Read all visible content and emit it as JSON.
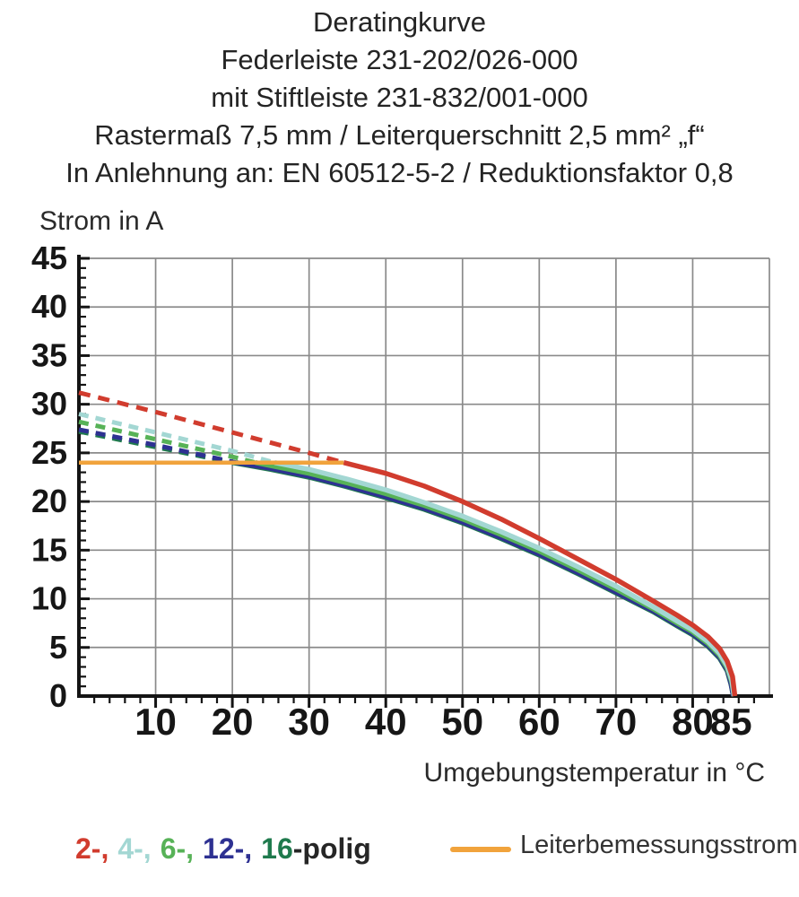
{
  "title": {
    "lines": [
      "Deratingkurve",
      "Federleiste 231-202/026-000",
      "mit Stiftleiste 231-832/001-000",
      "Rastermaß 7,5 mm / Leiterquerschnitt 2,5 mm² „f“",
      "In Anlehnung an: EN 60512-5-2 / Reduktionsfaktor 0,8"
    ]
  },
  "legend": {
    "pole_tokens": [
      {
        "text": "2-,",
        "color": "#d13c2e"
      },
      {
        "text": "4-,",
        "color": "#a3d7d3"
      },
      {
        "text": "6-,",
        "color": "#57b257"
      },
      {
        "text": "12-,",
        "color": "#2e3192"
      },
      {
        "text": "16",
        "color": "#1f7a4d"
      },
      {
        "text": "-polig",
        "color": "#262626"
      }
    ],
    "rated_label": "Leiterbemessungsstrom"
  },
  "chart_data": {
    "type": "line",
    "title": "Deratingkurve",
    "x_axis_title": "Umgebungstemperatur in °C",
    "y_axis_title": "Strom in A",
    "xlim": [
      0,
      90
    ],
    "ylim": [
      0,
      45
    ],
    "x_minor_step": 2,
    "y_minor_step": 1,
    "grid": {
      "x": [
        10,
        20,
        30,
        40,
        50,
        60,
        70,
        80,
        90
      ],
      "y": [
        5,
        10,
        15,
        20,
        25,
        30,
        35,
        40,
        45
      ]
    },
    "x_tick_labels": [
      {
        "v": 10,
        "label": "10"
      },
      {
        "v": 20,
        "label": "20"
      },
      {
        "v": 30,
        "label": "30"
      },
      {
        "v": 40,
        "label": "40"
      },
      {
        "v": 50,
        "label": "50"
      },
      {
        "v": 60,
        "label": "60"
      },
      {
        "v": 70,
        "label": "70"
      },
      {
        "v": 80,
        "label": "80"
      },
      {
        "v": 85,
        "label": "85"
      }
    ],
    "y_tick_labels": [
      {
        "v": 0,
        "label": "0"
      },
      {
        "v": 5,
        "label": "5"
      },
      {
        "v": 10,
        "label": "10"
      },
      {
        "v": 15,
        "label": "15"
      },
      {
        "v": 20,
        "label": "20"
      },
      {
        "v": 25,
        "label": "25"
      },
      {
        "v": 30,
        "label": "30"
      },
      {
        "v": 35,
        "label": "35"
      },
      {
        "v": 40,
        "label": "40"
      },
      {
        "v": 45,
        "label": "45"
      }
    ],
    "colors": {
      "grid": "#8a8a8a",
      "axis": "#141414",
      "red": "#d13c2e",
      "cyan": "#a3d7d3",
      "green": "#57b257",
      "navy": "#2e3192",
      "darkgreen": "#1f7a4d",
      "orange": "#f1a33c"
    },
    "rated_current": {
      "label": "Leiterbemessungsstrom",
      "value": 24,
      "x_range": [
        0,
        34.5
      ],
      "color": "#f1a33c"
    },
    "series": [
      {
        "name": "2-polig",
        "color": "#d13c2e",
        "dash": "13 9",
        "dashed": [
          [
            0,
            31.2
          ],
          [
            10,
            29.2
          ],
          [
            20,
            27.1
          ],
          [
            30,
            25.0
          ],
          [
            34.5,
            24
          ]
        ],
        "solid": [
          [
            34.5,
            24
          ],
          [
            40,
            22.9
          ],
          [
            45,
            21.6
          ],
          [
            50,
            20.0
          ],
          [
            55,
            18.2
          ],
          [
            60,
            16.2
          ],
          [
            65,
            14.1
          ],
          [
            70,
            12.0
          ],
          [
            75,
            9.7
          ],
          [
            78,
            8.3
          ],
          [
            80,
            7.3
          ],
          [
            82,
            6.1
          ],
          [
            83.5,
            4.9
          ],
          [
            84.5,
            3.6
          ],
          [
            85.2,
            2.0
          ],
          [
            85.5,
            0
          ]
        ]
      },
      {
        "name": "4-polig",
        "color": "#a3d7d3",
        "dash": "11 8",
        "dashed": [
          [
            0,
            29.0
          ],
          [
            10,
            27.1
          ],
          [
            20,
            25.2
          ],
          [
            25.5,
            24
          ]
        ],
        "solid": [
          [
            25.5,
            24
          ],
          [
            30,
            23.3
          ],
          [
            35,
            22.3
          ],
          [
            40,
            21.2
          ],
          [
            45,
            19.9
          ],
          [
            50,
            18.5
          ],
          [
            55,
            16.9
          ],
          [
            60,
            15.2
          ],
          [
            65,
            13.3
          ],
          [
            70,
            11.3
          ],
          [
            75,
            9.1
          ],
          [
            78,
            7.7
          ],
          [
            80,
            6.8
          ],
          [
            82,
            5.6
          ],
          [
            83.5,
            4.4
          ],
          [
            84.5,
            3.1
          ],
          [
            85.1,
            1.6
          ],
          [
            85.4,
            0
          ]
        ]
      },
      {
        "name": "6-polig",
        "color": "#57b257",
        "dash": "11 8",
        "dashed": [
          [
            0,
            28.2
          ],
          [
            10,
            26.4
          ],
          [
            20,
            24.6
          ],
          [
            23,
            24
          ]
        ],
        "solid": [
          [
            23,
            24
          ],
          [
            30,
            22.9
          ],
          [
            35,
            21.9
          ],
          [
            40,
            20.8
          ],
          [
            45,
            19.6
          ],
          [
            50,
            18.2
          ],
          [
            55,
            16.6
          ],
          [
            60,
            14.9
          ],
          [
            65,
            13.0
          ],
          [
            70,
            11.0
          ],
          [
            75,
            8.9
          ],
          [
            78,
            7.5
          ],
          [
            80,
            6.6
          ],
          [
            82,
            5.4
          ],
          [
            83.5,
            4.2
          ],
          [
            84.5,
            2.9
          ],
          [
            85.1,
            1.4
          ],
          [
            85.4,
            0
          ]
        ]
      },
      {
        "name": "12-polig",
        "color": "#2e3192",
        "dash": "11 8",
        "dashed": [
          [
            0,
            27.4
          ],
          [
            10,
            25.8
          ],
          [
            20.5,
            24
          ]
        ],
        "solid": [
          [
            20.5,
            24
          ],
          [
            25,
            23.4
          ],
          [
            30,
            22.6
          ],
          [
            35,
            21.6
          ],
          [
            40,
            20.5
          ],
          [
            45,
            19.3
          ],
          [
            50,
            17.9
          ],
          [
            55,
            16.3
          ],
          [
            60,
            14.6
          ],
          [
            65,
            12.7
          ],
          [
            70,
            10.7
          ],
          [
            75,
            8.7
          ],
          [
            78,
            7.3
          ],
          [
            80,
            6.4
          ],
          [
            82,
            5.2
          ],
          [
            83.5,
            4.0
          ],
          [
            84.5,
            2.7
          ],
          [
            85,
            1.3
          ],
          [
            85.3,
            0
          ]
        ]
      },
      {
        "name": "16-polig",
        "color": "#1f7a4d",
        "dash": "11 8",
        "dashed": [
          [
            0,
            27.2
          ],
          [
            10,
            25.6
          ],
          [
            20,
            24
          ]
        ],
        "solid": [
          [
            20,
            24
          ],
          [
            25,
            23.3
          ],
          [
            30,
            22.5
          ],
          [
            35,
            21.5
          ],
          [
            40,
            20.4
          ],
          [
            45,
            19.2
          ],
          [
            50,
            17.8
          ],
          [
            55,
            16.2
          ],
          [
            60,
            14.5
          ],
          [
            65,
            12.6
          ],
          [
            70,
            10.6
          ],
          [
            75,
            8.6
          ],
          [
            78,
            7.2
          ],
          [
            80,
            6.3
          ],
          [
            82,
            5.1
          ],
          [
            83.5,
            3.9
          ],
          [
            84.5,
            2.6
          ],
          [
            85,
            1.2
          ],
          [
            85.3,
            0
          ]
        ]
      }
    ]
  }
}
